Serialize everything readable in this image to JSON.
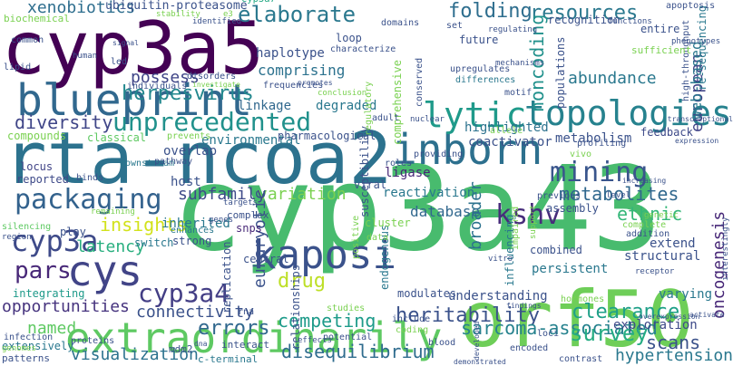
{
  "words": [
    {
      "text": "cyp3a7",
      "color": "#24a884",
      "rotated": false
    },
    {
      "text": "cyp3a43",
      "color": "#48bb6e",
      "rotated": false
    },
    {
      "text": "rta-ncoa2",
      "color": "#2c728e",
      "rotated": false
    },
    {
      "text": "cyp3a5",
      "color": "#440154",
      "rotated": false
    },
    {
      "text": "orf50",
      "color": "#6ece58",
      "rotated": false
    },
    {
      "text": "extraordinarily",
      "color": "#5ec962",
      "rotated": false
    },
    {
      "text": "blueprint",
      "color": "#31688e",
      "rotated": false
    },
    {
      "text": "inborn",
      "color": "#2d708e",
      "rotated": false
    },
    {
      "text": "topologies",
      "color": "#26828e",
      "rotated": false
    },
    {
      "text": "unprecedented",
      "color": "#21918c",
      "rotated": false
    },
    {
      "text": "kaposi",
      "color": "#3b528b",
      "rotated": false
    },
    {
      "text": "cys",
      "color": "#414487",
      "rotated": false
    },
    {
      "text": "packaging",
      "color": "#33628d",
      "rotated": false
    },
    {
      "text": "cyp3a",
      "color": "#3e4a89",
      "rotated": false
    },
    {
      "text": "elaborate",
      "color": "#2a788e",
      "rotated": false
    },
    {
      "text": "lytic",
      "color": "#1f9a8a",
      "rotated": false
    },
    {
      "text": "kshv",
      "color": "#472d7b",
      "rotated": false
    },
    {
      "text": "mining",
      "color": "#39558c",
      "rotated": false
    },
    {
      "text": "herpesvirus",
      "color": "#23888e",
      "rotated": false
    },
    {
      "text": "cyp3a4",
      "color": "#433e85",
      "rotated": false
    },
    {
      "text": "pars",
      "color": "#482878",
      "rotated": false
    },
    {
      "text": "resources",
      "color": "#2a788e",
      "rotated": false
    },
    {
      "text": "folding",
      "color": "#2e6e8e",
      "rotated": false
    },
    {
      "text": "heritability",
      "color": "#3b528b",
      "rotated": false
    },
    {
      "text": "errors",
      "color": "#31688e",
      "rotated": false
    },
    {
      "text": "diversity",
      "color": "#404688",
      "rotated": false
    },
    {
      "text": "visualization",
      "color": "#2c728e",
      "rotated": false
    },
    {
      "text": "disequilibrium",
      "color": "#2f6c8e",
      "rotated": false
    },
    {
      "text": "sarcoma-associated",
      "color": "#26828e",
      "rotated": false
    },
    {
      "text": "xenobiotics",
      "color": "#2e6e8e",
      "rotated": false
    },
    {
      "text": "variation",
      "color": "#7ad151",
      "rotated": false
    },
    {
      "text": "subfamily",
      "color": "#3e4a89",
      "rotated": false
    },
    {
      "text": "metabolites",
      "color": "#31688e",
      "rotated": false
    },
    {
      "text": "ethnic",
      "color": "#35b779",
      "rotated": false
    },
    {
      "text": "drug",
      "color": "#bddf26",
      "rotated": false
    },
    {
      "text": "insights",
      "color": "#d2e21b",
      "rotated": false
    },
    {
      "text": "latency",
      "color": "#29af7f",
      "rotated": false
    },
    {
      "text": "opportunities",
      "color": "#46337e",
      "rotated": false
    },
    {
      "text": "connectivity",
      "color": "#3b528b",
      "rotated": false
    },
    {
      "text": "competing",
      "color": "#1e9b8a",
      "rotated": false
    },
    {
      "text": "clearance",
      "color": "#1fa088",
      "rotated": false
    },
    {
      "text": "survey",
      "color": "#25ac82",
      "rotated": false
    },
    {
      "text": "scans",
      "color": "#3b528b",
      "rotated": false
    },
    {
      "text": "hypertension",
      "color": "#2a788e",
      "rotated": false
    },
    {
      "text": "exploration",
      "color": "#3e4a89",
      "rotated": false
    },
    {
      "text": "named",
      "color": "#5ec962",
      "rotated": false
    },
    {
      "text": "oncogenesis",
      "color": "#482878",
      "rotated": true
    },
    {
      "text": "european",
      "color": "#414487",
      "rotated": true
    },
    {
      "text": "noncoding",
      "color": "#21918c",
      "rotated": true
    },
    {
      "text": "abundance",
      "color": "#2a788e",
      "rotated": false
    },
    {
      "text": "comprising",
      "color": "#2c728e",
      "rotated": false
    },
    {
      "text": "possess",
      "color": "#404688",
      "rotated": false
    },
    {
      "text": "eukaryotic",
      "color": "#3b528b",
      "rotated": true
    },
    {
      "text": "broader",
      "color": "#2c728e",
      "rotated": true
    },
    {
      "text": "web-based",
      "color": "#2a788e",
      "rotated": true
    },
    {
      "text": "ubiquitin-proteasome",
      "color": "#3b528b",
      "rotated": false
    },
    {
      "text": "haplotype",
      "color": "#3b528b",
      "rotated": false
    },
    {
      "text": "linkage",
      "color": "#31688e",
      "rotated": false
    },
    {
      "text": "degraded",
      "color": "#2a788e",
      "rotated": false
    },
    {
      "text": "environmental",
      "color": "#2a788e",
      "rotated": false
    },
    {
      "text": "pharmacological",
      "color": "#3b528b",
      "rotated": false
    },
    {
      "text": "database",
      "color": "#31688e",
      "rotated": false
    },
    {
      "text": "ligase",
      "color": "#482878",
      "rotated": false
    },
    {
      "text": "reactivation",
      "color": "#2a788e",
      "rotated": false
    },
    {
      "text": "highlighted",
      "color": "#2c728e",
      "rotated": false
    },
    {
      "text": "coactivator",
      "color": "#3b528b",
      "rotated": false
    },
    {
      "text": "metabolism",
      "color": "#3b528b",
      "rotated": false
    },
    {
      "text": "feedback",
      "color": "#3e4a89",
      "rotated": false
    },
    {
      "text": "inherited",
      "color": "#2a788e",
      "rotated": false
    },
    {
      "text": "host",
      "color": "#3b528b",
      "rotated": false
    },
    {
      "text": "compounds",
      "color": "#7ad151",
      "rotated": false
    },
    {
      "text": "classical",
      "color": "#5ec962",
      "rotated": false
    },
    {
      "text": "overlap",
      "color": "#3b528b",
      "rotated": false
    },
    {
      "text": "locus",
      "color": "#414487",
      "rotated": false
    },
    {
      "text": "reported",
      "color": "#3e4a89",
      "rotated": false
    },
    {
      "text": "silencing",
      "color": "#5ec962",
      "rotated": false
    },
    {
      "text": "play",
      "color": "#3b528b",
      "rotated": false
    },
    {
      "text": "region",
      "color": "#3b528b",
      "rotated": false
    },
    {
      "text": "integrating",
      "color": "#1f9a8a",
      "rotated": false
    },
    {
      "text": "infection",
      "color": "#3b528b",
      "rotated": false
    },
    {
      "text": "extensively",
      "color": "#2a788e",
      "rotated": false
    },
    {
      "text": "patterns",
      "color": "#3b528b",
      "rotated": false
    },
    {
      "text": "genomes",
      "color": "#7ad151",
      "rotated": false
    },
    {
      "text": "strong",
      "color": "#3b528b",
      "rotated": false
    },
    {
      "text": "switch",
      "color": "#2a788e",
      "rotated": false
    },
    {
      "text": "snps",
      "color": "#482878",
      "rotated": false
    },
    {
      "text": "enhances",
      "color": "#2a788e",
      "rotated": false
    },
    {
      "text": "central",
      "color": "#3b528b",
      "rotated": false
    },
    {
      "text": "mdm2",
      "color": "#3b528b",
      "rotated": false
    },
    {
      "text": "c-terminal",
      "color": "#2a788e",
      "rotated": false
    },
    {
      "text": "interact",
      "color": "#3b528b",
      "rotated": false
    },
    {
      "text": "complex",
      "color": "#3b528b",
      "rotated": false
    },
    {
      "text": "persistent",
      "color": "#2a788e",
      "rotated": false
    },
    {
      "text": "structural",
      "color": "#3b528b",
      "rotated": false
    },
    {
      "text": "extend",
      "color": "#3b528b",
      "rotated": false
    },
    {
      "text": "varying",
      "color": "#2a788e",
      "rotated": false
    },
    {
      "text": "understanding",
      "color": "#3b528b",
      "rotated": false
    },
    {
      "text": "modulates",
      "color": "#3b528b",
      "rotated": false
    },
    {
      "text": "combined",
      "color": "#3b528b",
      "rotated": false
    },
    {
      "text": "influencing",
      "color": "#2a788e",
      "rotated": true
    },
    {
      "text": "relationships",
      "color": "#3b528b",
      "rotated": true
    },
    {
      "text": "endogenous",
      "color": "#2a788e",
      "rotated": true
    },
    {
      "text": "replication",
      "color": "#3b528b",
      "rotated": true
    },
    {
      "text": "susceptibility",
      "color": "#3b528b",
      "rotated": true
    },
    {
      "text": "comprehensive",
      "color": "#7ad151",
      "rotated": true
    },
    {
      "text": "high-throughput",
      "color": "#3b528b",
      "rotated": true
    },
    {
      "text": "re-sequencing",
      "color": "#2a788e",
      "rotated": true
    },
    {
      "text": "populations",
      "color": "#3b528b",
      "rotated": true
    },
    {
      "text": "recognition",
      "color": "#3b528b",
      "rotated": false
    },
    {
      "text": "entire",
      "color": "#3b528b",
      "rotated": false
    },
    {
      "text": "apoptosis",
      "color": "#3b528b",
      "rotated": false
    },
    {
      "text": "sufficient",
      "color": "#7ad151",
      "rotated": false
    },
    {
      "text": "biochemical",
      "color": "#7ad151",
      "rotated": false
    },
    {
      "text": "common",
      "color": "#3b528b",
      "rotated": false
    },
    {
      "text": "lipid",
      "color": "#3b528b",
      "rotated": false
    },
    {
      "text": "human",
      "color": "#3b528b",
      "rotated": false
    },
    {
      "text": "individuals",
      "color": "#3b528b",
      "rotated": false
    },
    {
      "text": "disorders",
      "color": "#3b528b",
      "rotated": false
    },
    {
      "text": "stability",
      "color": "#7ad151",
      "rotated": false
    },
    {
      "text": "identified",
      "color": "#3b528b",
      "rotated": false
    },
    {
      "text": "domains",
      "color": "#3b528b",
      "rotated": false
    },
    {
      "text": "set",
      "color": "#3b528b",
      "rotated": false
    },
    {
      "text": "future",
      "color": "#3b528b",
      "rotated": false
    },
    {
      "text": "loop",
      "color": "#3b528b",
      "rotated": false
    },
    {
      "text": "characterize",
      "color": "#3b528b",
      "rotated": false
    },
    {
      "text": "conclusion",
      "color": "#7ad151",
      "rotated": false
    },
    {
      "text": "differences",
      "color": "#2a788e",
      "rotated": false
    },
    {
      "text": "upregulates",
      "color": "#3b528b",
      "rotated": false
    },
    {
      "text": "mechanisms",
      "color": "#3b528b",
      "rotated": false
    },
    {
      "text": "regulating",
      "color": "#3b528b",
      "rotated": false
    },
    {
      "text": "functions",
      "color": "#3b528b",
      "rotated": false
    },
    {
      "text": "phenotypes",
      "color": "#3b528b",
      "rotated": false
    },
    {
      "text": "transcriptional",
      "color": "#3b528b",
      "rotated": false
    },
    {
      "text": "motif",
      "color": "#3b528b",
      "rotated": false
    },
    {
      "text": "adult",
      "color": "#3b528b",
      "rotated": false
    },
    {
      "text": "nuclear",
      "color": "#3b528b",
      "rotated": false
    },
    {
      "text": "allele",
      "color": "#7ad151",
      "rotated": false
    },
    {
      "text": "providing",
      "color": "#3b528b",
      "rotated": false
    },
    {
      "text": "roles",
      "color": "#3b528b",
      "rotated": false
    },
    {
      "text": "vivo",
      "color": "#7ad151",
      "rotated": false
    },
    {
      "text": "profiling",
      "color": "#3b528b",
      "rotated": false
    },
    {
      "text": "previous",
      "color": "#3b528b",
      "rotated": false
    },
    {
      "text": "assembly",
      "color": "#3b528b",
      "rotated": false
    },
    {
      "text": "expression",
      "color": "#3b528b",
      "rotated": false
    },
    {
      "text": "increasing",
      "color": "#3b528b",
      "rotated": false
    },
    {
      "text": "level",
      "color": "#3b528b",
      "rotated": false
    },
    {
      "text": "genetic",
      "color": "#7ad151",
      "rotated": false
    },
    {
      "text": "complete",
      "color": "#7ad151",
      "rotated": false
    },
    {
      "text": "addition",
      "color": "#3b528b",
      "rotated": false
    },
    {
      "text": "receptor",
      "color": "#3b528b",
      "rotated": false
    },
    {
      "text": "interestingly",
      "color": "#3b528b",
      "rotated": true
    },
    {
      "text": "overexpression",
      "color": "#3b528b",
      "rotated": false
    },
    {
      "text": "activate",
      "color": "#3b528b",
      "rotated": false
    },
    {
      "text": "contrast",
      "color": "#3b528b",
      "rotated": false
    },
    {
      "text": "hormones",
      "color": "#7ad151",
      "rotated": false
    },
    {
      "text": "findings",
      "color": "#3b528b",
      "rotated": false
    },
    {
      "text": "loci",
      "color": "#3b528b",
      "rotated": false
    },
    {
      "text": "encoded",
      "color": "#3b528b",
      "rotated": false
    },
    {
      "text": "demonstrated",
      "color": "#3b528b",
      "rotated": false
    },
    {
      "text": "blood",
      "color": "#3b528b",
      "rotated": false
    },
    {
      "text": "coding",
      "color": "#7ad151",
      "rotated": false
    },
    {
      "text": "include",
      "color": "#3b528b",
      "rotated": false
    },
    {
      "text": "potential",
      "color": "#3b528b",
      "rotated": false
    },
    {
      "text": "studies",
      "color": "#7ad151",
      "rotated": false
    },
    {
      "text": "effects",
      "color": "#3b528b",
      "rotated": false
    },
    {
      "text": "proteins",
      "color": "#3b528b",
      "rotated": false
    },
    {
      "text": "rna",
      "color": "#3b528b",
      "rotated": false
    },
    {
      "text": "targets",
      "color": "#3b528b",
      "rotated": false
    },
    {
      "text": "genes",
      "color": "#3b528b",
      "rotated": false
    },
    {
      "text": "remaining",
      "color": "#7ad151",
      "rotated": false
    },
    {
      "text": "downstream",
      "color": "#2a788e",
      "rotated": false
    },
    {
      "text": "pathway",
      "color": "#3b528b",
      "rotated": false
    },
    {
      "text": "binds",
      "color": "#3b528b",
      "rotated": false
    },
    {
      "text": "prevents",
      "color": "#7ad151",
      "rotated": false
    },
    {
      "text": "viral",
      "color": "#3b528b",
      "rotated": false
    },
    {
      "text": "cluster",
      "color": "#7ad151",
      "rotated": false
    },
    {
      "text": "data",
      "color": "#7ad151",
      "rotated": false
    },
    {
      "text": "positive",
      "color": "#7ad151",
      "rotated": true
    },
    {
      "text": "developed",
      "color": "#3b528b",
      "rotated": true
    },
    {
      "text": "vitro",
      "color": "#3b528b",
      "rotated": false
    },
    {
      "text": "impaired",
      "color": "#7ad151",
      "rotated": true
    },
    {
      "text": "support",
      "color": "#7ad151",
      "rotated": true
    },
    {
      "text": "regulatory",
      "color": "#7ad151",
      "rotated": true
    },
    {
      "text": "conserved",
      "color": "#3b528b",
      "rotated": true
    },
    {
      "text": "promotes",
      "color": "#3b528b",
      "rotated": false
    },
    {
      "text": "signal",
      "color": "#3b528b",
      "rotated": false
    },
    {
      "text": "investigate",
      "color": "#7ad151",
      "rotated": false
    },
    {
      "text": "frequencies",
      "color": "#3b528b",
      "rotated": false
    },
    {
      "text": "led",
      "color": "#3b528b",
      "rotated": false
    },
    {
      "text": "e3",
      "color": "#7ad151",
      "rotated": false
    },
    {
      "text": "dna",
      "color": "#3b528b",
      "rotated": false
    }
  ]
}
